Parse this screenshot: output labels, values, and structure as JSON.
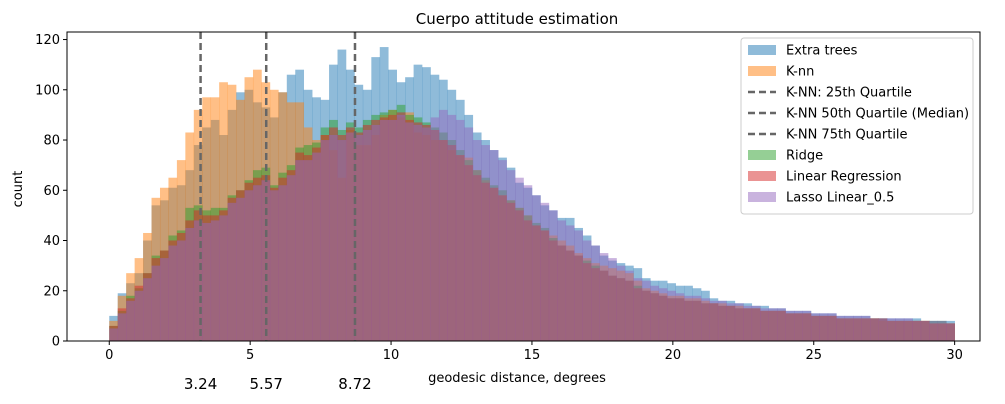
{
  "chart_data": {
    "type": "histogram",
    "title": "Cuerpo attitude estimation",
    "xlabel": "geodesic distance, degrees",
    "ylabel": "count",
    "xlim": [
      -1.5,
      30.9
    ],
    "ylim": [
      0,
      123
    ],
    "x_ticks": [
      0,
      5,
      10,
      15,
      20,
      25,
      30
    ],
    "y_ticks": [
      0,
      20,
      40,
      60,
      80,
      100,
      120
    ],
    "bin_width": 0.3,
    "bins_start": 0,
    "legend_position": "top-right",
    "quartile_lines": [
      3.24,
      5.57,
      8.72
    ],
    "quartile_labels": [
      "3.24",
      "5.57",
      "8.72"
    ],
    "series": [
      {
        "name": "Extra trees",
        "kind": "bar",
        "color": "#1f77b4",
        "values": [
          10,
          19,
          23,
          27,
          40,
          54,
          56,
          61,
          62,
          68,
          78,
          85,
          88,
          82,
          92,
          99,
          100,
          95,
          93,
          89,
          99,
          106,
          108,
          100,
          97,
          96,
          110,
          116,
          108,
          102,
          100,
          113,
          117,
          108,
          103,
          105,
          110,
          109,
          106,
          104,
          100,
          96,
          90,
          83,
          80,
          76,
          73,
          69,
          63,
          61,
          58,
          54,
          52,
          49,
          49,
          45,
          42,
          38,
          34,
          32,
          31,
          30,
          29,
          25,
          24,
          24,
          23,
          22,
          22,
          21,
          20,
          17,
          16,
          16,
          15,
          15,
          14,
          14,
          13,
          13,
          12,
          12,
          12,
          11,
          11,
          11,
          10,
          10,
          10,
          10,
          9,
          9,
          9,
          9,
          9,
          9,
          8,
          8,
          8,
          8
        ]
      },
      {
        "name": "K-nn",
        "kind": "bar",
        "color": "#ff7f0e",
        "values": [
          8,
          18,
          27,
          33,
          43,
          57,
          61,
          65,
          72,
          83,
          92,
          97,
          97,
          103,
          102,
          96,
          105,
          108,
          103,
          100,
          99,
          95,
          95,
          85,
          80,
          82,
          76,
          65,
          84,
          78,
          78,
          82,
          90,
          92,
          89,
          91,
          83,
          82,
          80,
          80,
          76,
          74,
          73,
          68,
          64,
          61,
          58,
          56,
          53,
          50,
          46,
          44,
          42,
          40,
          38,
          35,
          33,
          31,
          30,
          29,
          28,
          27,
          24,
          21,
          20,
          19,
          18,
          18,
          17,
          17,
          16,
          15,
          15,
          14,
          14,
          13,
          13,
          12,
          12,
          12,
          11,
          11,
          11,
          10,
          10,
          10,
          9,
          9,
          9,
          9,
          9,
          8,
          8,
          8,
          8,
          8,
          8,
          7,
          7,
          7
        ]
      },
      {
        "name": "K-NN: 25th Quartile",
        "kind": "vline",
        "color": "#666666",
        "x": 3.24
      },
      {
        "name": "K-NN 50th Quartile (Median)",
        "kind": "vline",
        "color": "#666666",
        "x": 5.57
      },
      {
        "name": "K-NN 75th Quartile",
        "kind": "vline",
        "color": "#666666",
        "x": 8.72
      },
      {
        "name": "Ridge",
        "kind": "bar",
        "color": "#2ca02c",
        "values": [
          6,
          12,
          18,
          21,
          27,
          34,
          36,
          42,
          44,
          53,
          54,
          52,
          53,
          53,
          58,
          60,
          64,
          68,
          69,
          62,
          67,
          70,
          77,
          78,
          79,
          85,
          88,
          84,
          87,
          85,
          88,
          90,
          91,
          92,
          94,
          90,
          89,
          87,
          85,
          83,
          80,
          76,
          72,
          68,
          65,
          62,
          60,
          56,
          53,
          50,
          47,
          45,
          41,
          38,
          36,
          34,
          32,
          30,
          28,
          26,
          25,
          24,
          22,
          20,
          19,
          18,
          17,
          17,
          16,
          16,
          15,
          15,
          14,
          14,
          13,
          13,
          13,
          12,
          12,
          12,
          11,
          11,
          11,
          10,
          10,
          10,
          9,
          9,
          9,
          9,
          9,
          9,
          8,
          8,
          8,
          8,
          8,
          8,
          8,
          7
        ]
      },
      {
        "name": "Linear Regression",
        "kind": "bar",
        "color": "#d62728",
        "values": [
          6,
          13,
          17,
          22,
          27,
          33,
          36,
          40,
          43,
          48,
          52,
          50,
          50,
          52,
          57,
          60,
          63,
          65,
          66,
          61,
          65,
          68,
          75,
          74,
          77,
          82,
          85,
          82,
          85,
          83,
          86,
          88,
          89,
          90,
          91,
          88,
          87,
          86,
          84,
          80,
          78,
          74,
          70,
          66,
          63,
          61,
          58,
          55,
          52,
          48,
          46,
          44,
          40,
          38,
          36,
          34,
          31,
          29,
          28,
          26,
          25,
          24,
          21,
          20,
          19,
          18,
          17,
          17,
          16,
          16,
          15,
          15,
          14,
          14,
          13,
          13,
          13,
          12,
          12,
          12,
          11,
          11,
          11,
          10,
          10,
          10,
          9,
          9,
          9,
          9,
          9,
          9,
          8,
          8,
          8,
          8,
          8,
          7,
          7,
          7
        ]
      },
      {
        "name": "Lasso Linear_0.5",
        "kind": "bar",
        "color": "#9467bd",
        "values": [
          5,
          11,
          16,
          20,
          25,
          30,
          33,
          38,
          40,
          45,
          48,
          47,
          48,
          50,
          55,
          57,
          60,
          62,
          64,
          60,
          62,
          66,
          72,
          72,
          75,
          80,
          82,
          80,
          83,
          82,
          84,
          86,
          88,
          88,
          90,
          87,
          86,
          85,
          89,
          92,
          90,
          88,
          85,
          80,
          78,
          76,
          72,
          68,
          65,
          62,
          58,
          55,
          52,
          48,
          46,
          44,
          40,
          38,
          35,
          33,
          30,
          28,
          25,
          24,
          22,
          21,
          20,
          19,
          18,
          18,
          17,
          16,
          16,
          15,
          15,
          14,
          14,
          13,
          13,
          13,
          12,
          12,
          12,
          11,
          11,
          11,
          10,
          10,
          10,
          10,
          9,
          9,
          9,
          9,
          9,
          8,
          8,
          8,
          8,
          7
        ]
      }
    ]
  }
}
